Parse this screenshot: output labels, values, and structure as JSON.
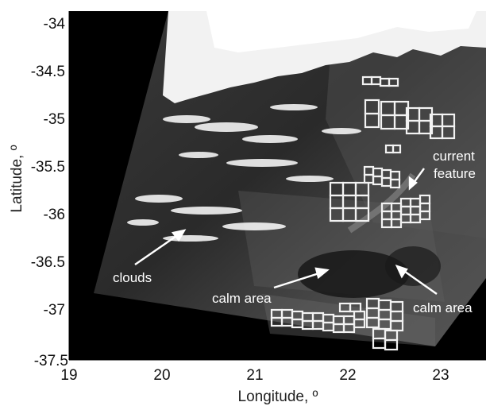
{
  "figure": {
    "x_axis": {
      "label": "Longitude, º",
      "ticks": [
        "19",
        "20",
        "21",
        "22",
        "23"
      ],
      "range": [
        19,
        23.5
      ]
    },
    "y_axis": {
      "label": "Latitude, º",
      "ticks": [
        "-34",
        "-34.5",
        "-35",
        "-35.5",
        "-36",
        "-36.5",
        "-37",
        "-37.5"
      ],
      "range": [
        -37.5,
        -33.9
      ]
    },
    "annotations": [
      {
        "text": "clouds"
      },
      {
        "text": "calm area"
      },
      {
        "text": "calm area"
      },
      {
        "text": "current"
      },
      {
        "text": "feature"
      }
    ],
    "colors": {
      "background": "#000000",
      "annotation": "#ffffff",
      "grid_boxes": "#f2f2f2"
    }
  }
}
